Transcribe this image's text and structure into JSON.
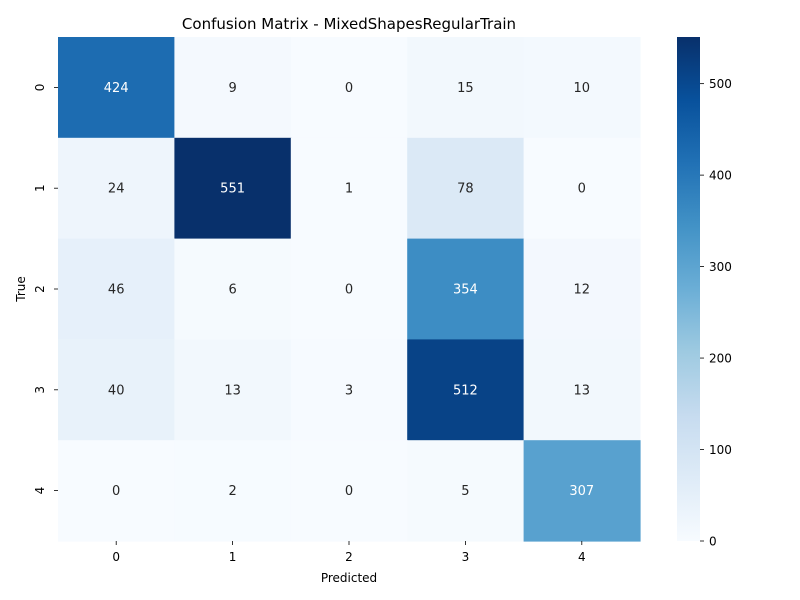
{
  "chart_data": {
    "type": "heatmap",
    "title": "Confusion Matrix - MixedShapesRegularTrain",
    "xlabel": "Predicted",
    "ylabel": "True",
    "x_categories": [
      "0",
      "1",
      "2",
      "3",
      "4"
    ],
    "y_categories": [
      "0",
      "1",
      "2",
      "3",
      "4"
    ],
    "values": [
      [
        424,
        9,
        0,
        15,
        10
      ],
      [
        24,
        551,
        1,
        78,
        0
      ],
      [
        46,
        6,
        0,
        354,
        12
      ],
      [
        40,
        13,
        3,
        512,
        13
      ],
      [
        0,
        2,
        0,
        5,
        307
      ]
    ],
    "colorbar": {
      "min": 0,
      "max": 551,
      "ticks": [
        0,
        100,
        200,
        300,
        400,
        500
      ],
      "colormap": "Blues"
    },
    "grid": false
  }
}
